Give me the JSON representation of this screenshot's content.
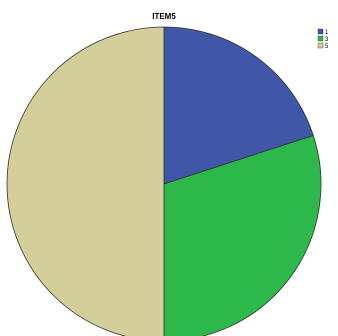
{
  "chart_data": {
    "type": "pie",
    "title": "ITEM5",
    "slices": [
      {
        "label": "1",
        "value": 20,
        "color": "#3f56a9"
      },
      {
        "label": "3",
        "value": 30,
        "color": "#2db84a"
      },
      {
        "label": "5",
        "value": 50,
        "color": "#d4ce9b"
      }
    ],
    "legend": {
      "position": "top-right",
      "labels": [
        "1",
        "3",
        "5"
      ]
    }
  }
}
